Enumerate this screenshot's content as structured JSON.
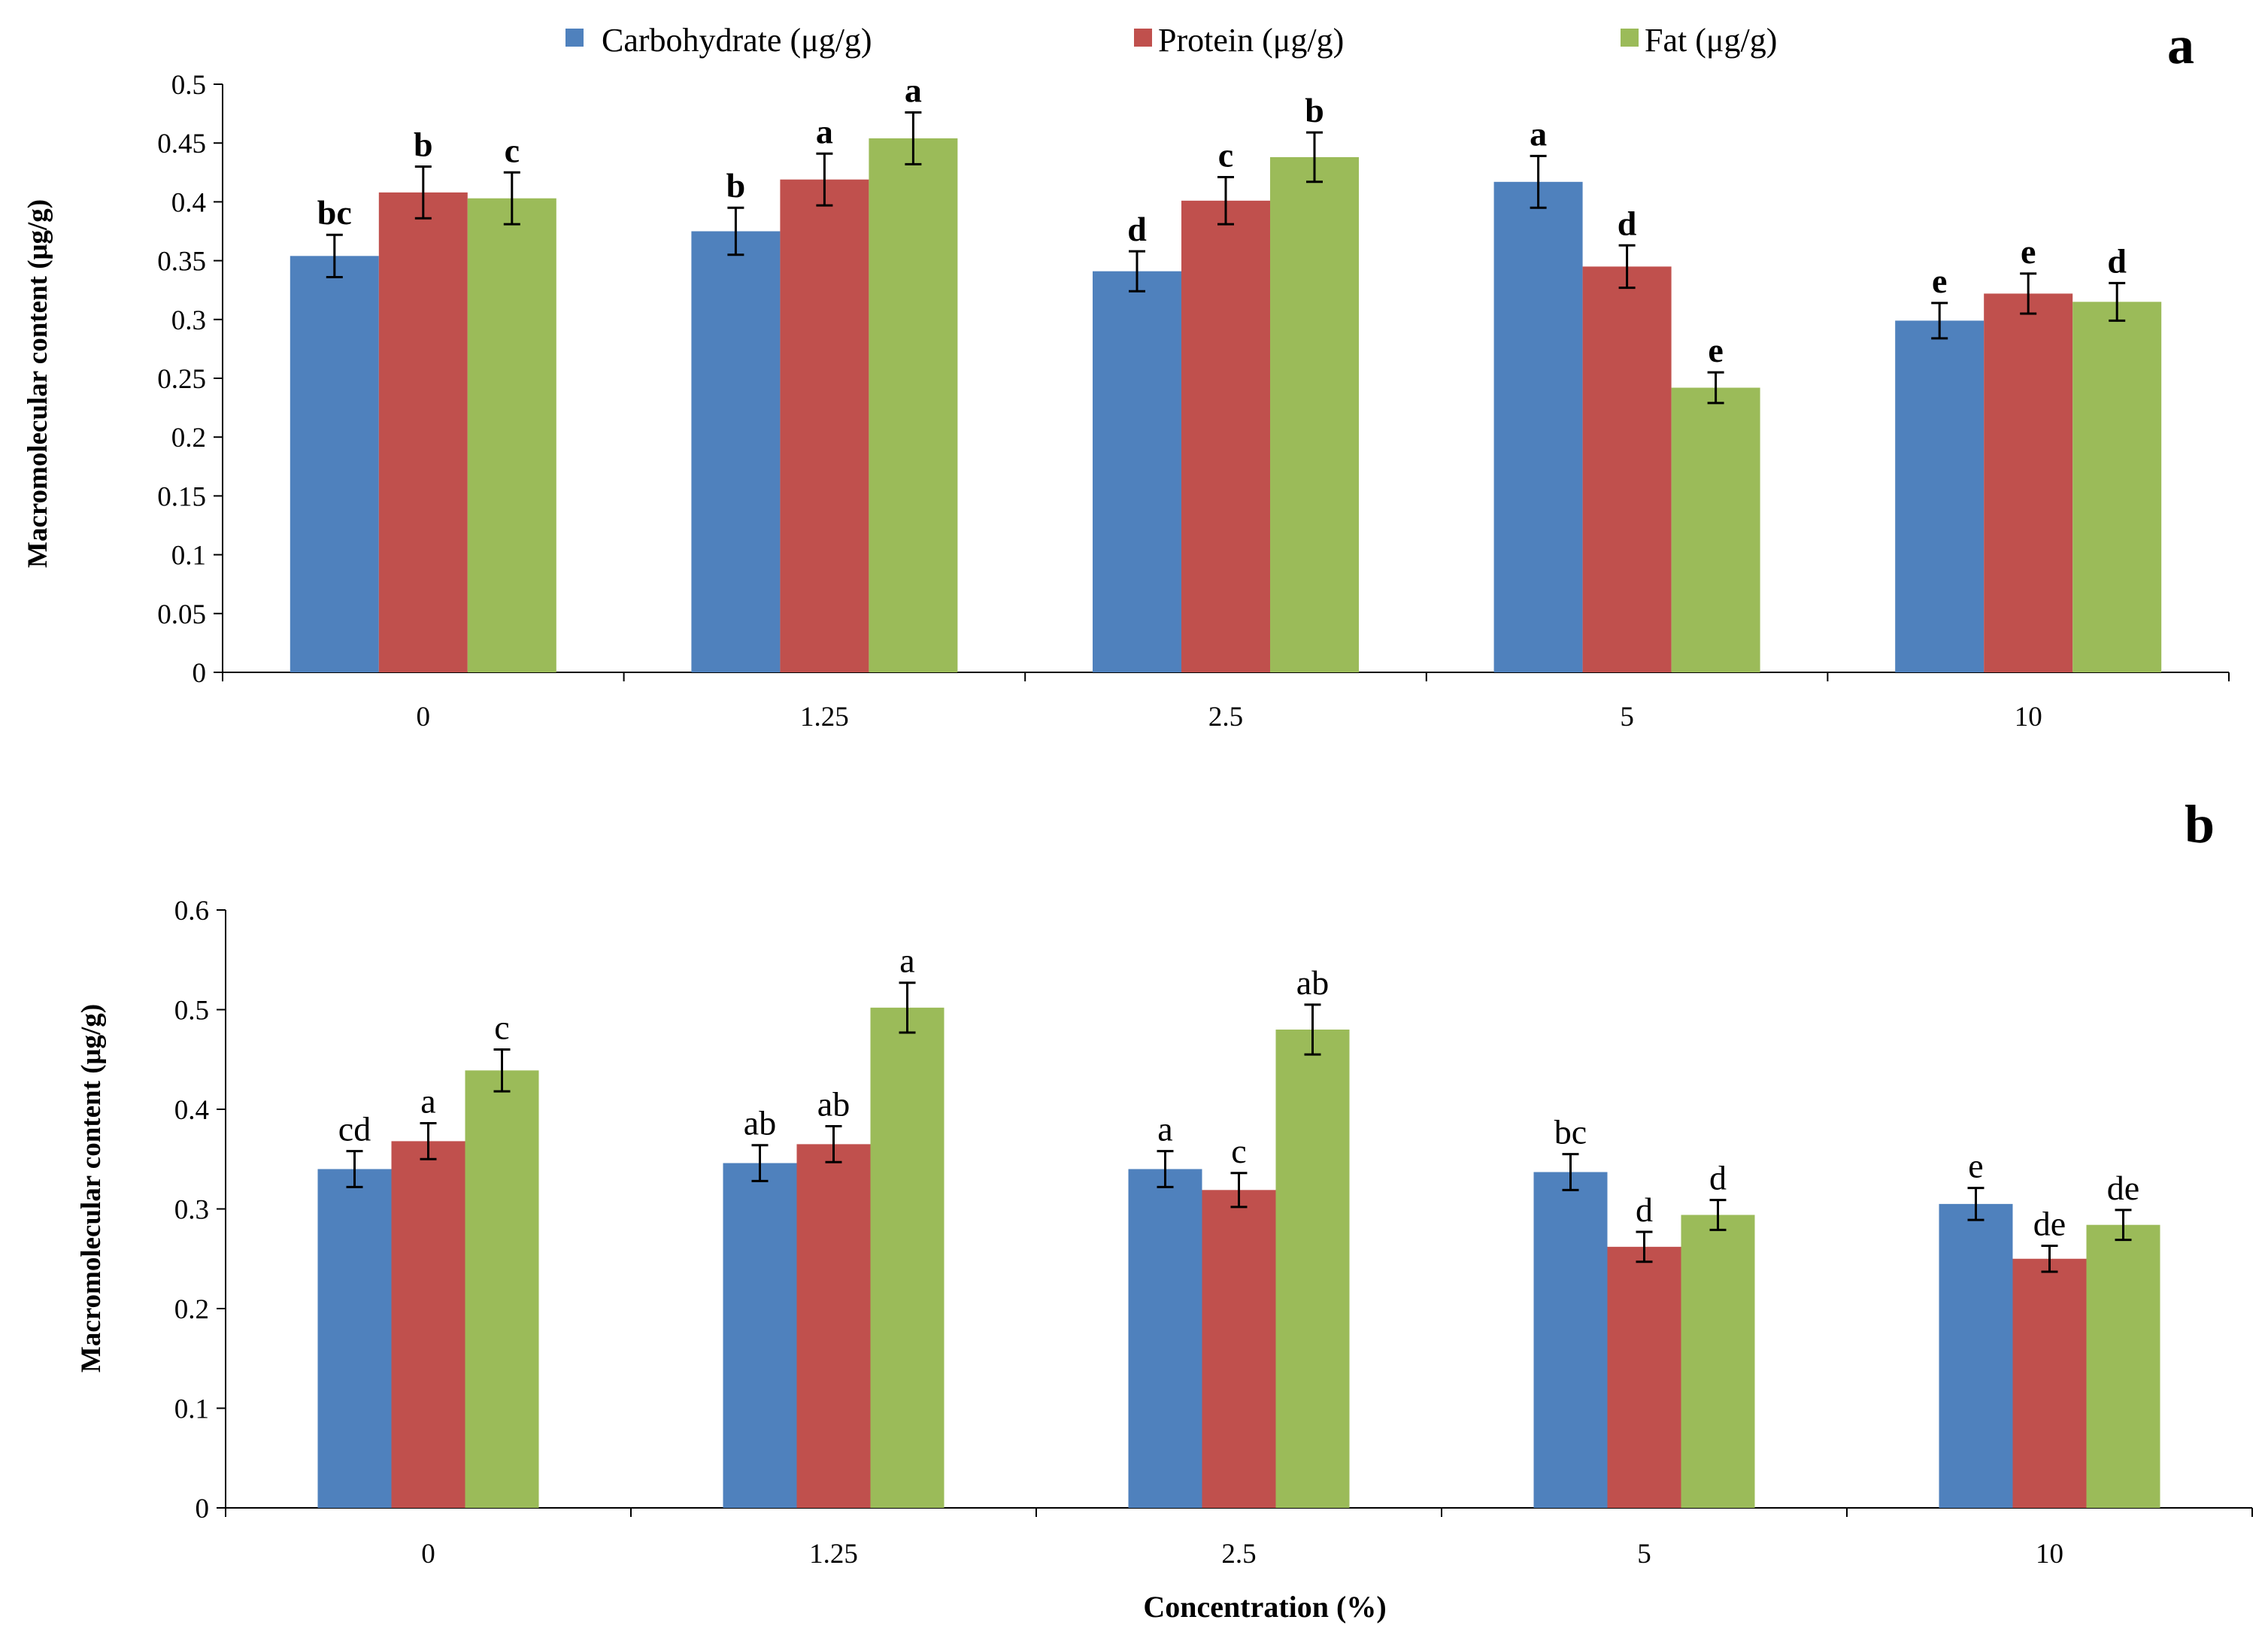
{
  "legend": {
    "carbohydrate": "Carbohydrate (μg/g)",
    "protein": "Protein (μg/g)",
    "fat": "Fat (μg/g)"
  },
  "colors": {
    "carbohydrate": "#4f81bd",
    "protein": "#c0504d",
    "fat": "#9bbb59"
  },
  "chart_data": [
    {
      "type": "bar",
      "panel_label": "a",
      "title": "",
      "xlabel": "",
      "ylabel": "Macromolecular  content  (μg/g)",
      "ylim": [
        0,
        0.5
      ],
      "yticks": [
        "0",
        "0.05",
        "0.1",
        "0.15",
        "0.2",
        "0.25",
        "0.3",
        "0.35",
        "0.4",
        "0.45",
        "0.5"
      ],
      "categories": [
        "0",
        "1.25",
        "2.5",
        "5",
        "10"
      ],
      "series": [
        {
          "name": "Carbohydrate (μg/g)",
          "key": "carbohydrate",
          "values": [
            0.354,
            0.375,
            0.341,
            0.417,
            0.299
          ],
          "errors": [
            0.018,
            0.02,
            0.017,
            0.022,
            0.015
          ],
          "letters": [
            "bc",
            "b",
            "d",
            "a",
            "e"
          ]
        },
        {
          "name": "Protein (μg/g)",
          "key": "protein",
          "values": [
            0.408,
            0.419,
            0.401,
            0.345,
            0.322
          ],
          "errors": [
            0.022,
            0.022,
            0.02,
            0.018,
            0.017
          ],
          "letters": [
            "b",
            "a",
            "c",
            "d",
            "e"
          ]
        },
        {
          "name": "Fat (μg/g)",
          "key": "fat",
          "values": [
            0.403,
            0.454,
            0.438,
            0.242,
            0.315
          ],
          "errors": [
            0.022,
            0.022,
            0.021,
            0.013,
            0.016
          ],
          "letters": [
            "c",
            "a",
            "b",
            "e",
            "d"
          ]
        }
      ]
    },
    {
      "type": "bar",
      "panel_label": "b",
      "title": "",
      "xlabel": "Concentration  (%)",
      "ylabel": "Macromolecular  content  (μg/g)",
      "ylim": [
        0,
        0.6
      ],
      "yticks": [
        "0",
        "0.1",
        "0.2",
        "0.3",
        "0.4",
        "0.5",
        "0.6"
      ],
      "categories": [
        "0",
        "1.25",
        "2.5",
        "5",
        "10"
      ],
      "series": [
        {
          "name": "Carbohydrate (μg/g)",
          "key": "carbohydrate",
          "values": [
            0.34,
            0.346,
            0.34,
            0.337,
            0.305
          ],
          "errors": [
            0.018,
            0.018,
            0.018,
            0.018,
            0.016
          ],
          "letters": [
            "cd",
            "ab",
            "a",
            "bc",
            "e"
          ]
        },
        {
          "name": "Protein (μg/g)",
          "key": "protein",
          "values": [
            0.368,
            0.365,
            0.319,
            0.262,
            0.25
          ],
          "errors": [
            0.018,
            0.018,
            0.017,
            0.015,
            0.013
          ],
          "letters": [
            "a",
            "ab",
            "c",
            "d",
            "de"
          ]
        },
        {
          "name": "Fat (μg/g)",
          "key": "fat",
          "values": [
            0.439,
            0.502,
            0.48,
            0.294,
            0.284
          ],
          "errors": [
            0.021,
            0.025,
            0.025,
            0.015,
            0.015
          ],
          "letters": [
            "c",
            "a",
            "ab",
            "d",
            "de"
          ]
        }
      ]
    }
  ]
}
